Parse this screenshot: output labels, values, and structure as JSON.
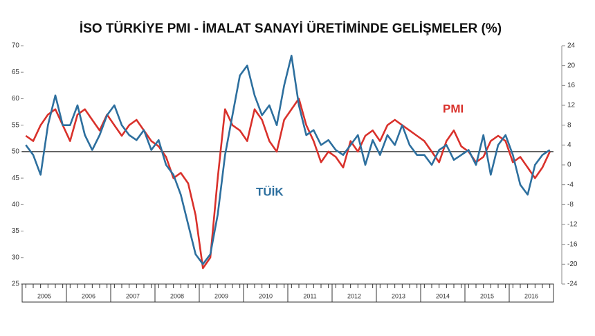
{
  "chart_data": {
    "type": "line",
    "title": "İSO TÜRKİYE PMI - İMALAT SANAYİ ÜRETİMİNDE GELİŞMELER (%)",
    "categories": [
      "2005",
      null,
      null,
      null,
      null,
      null,
      "2006",
      null,
      null,
      null,
      null,
      null,
      "2007",
      null,
      null,
      null,
      null,
      null,
      "2008",
      null,
      null,
      null,
      null,
      null,
      "2009",
      null,
      null,
      null,
      null,
      null,
      "2010",
      null,
      null,
      null,
      null,
      null,
      "2011",
      null,
      null,
      null,
      null,
      null,
      "2012",
      null,
      null,
      null,
      null,
      null,
      "2013",
      null,
      null,
      null,
      null,
      null,
      "2014",
      null,
      null,
      null,
      null,
      null,
      "2015",
      null,
      null,
      null,
      null,
      null,
      "2016",
      null,
      null,
      null,
      null,
      null
    ],
    "series": [
      {
        "name": "PMI",
        "color": "#d9312b",
        "values": [
          53,
          52,
          55,
          57,
          58,
          55,
          52,
          57,
          58,
          56,
          54,
          57,
          55,
          53,
          55,
          56,
          54,
          52,
          51,
          49,
          45,
          46,
          44,
          38,
          28,
          30,
          45,
          58,
          55,
          54,
          52,
          58,
          56,
          52,
          50,
          56,
          58,
          60,
          55,
          52,
          48,
          50,
          49,
          47,
          52,
          50,
          53,
          54,
          52,
          55,
          56,
          55,
          54,
          53,
          52,
          50,
          48,
          52,
          54,
          51,
          50,
          48,
          49,
          52,
          53,
          52,
          48,
          49,
          47,
          45,
          47,
          50
        ]
      },
      {
        "name": "TÜİK",
        "color": "#2d6f9e",
        "axis": "y2",
        "values": [
          4,
          2,
          -2,
          8,
          14,
          8,
          8,
          12,
          6,
          3,
          6,
          10,
          12,
          8,
          6,
          5,
          7,
          3,
          5,
          0,
          -2,
          -6,
          -12,
          -18,
          -20,
          -18,
          -10,
          2,
          10,
          18,
          20,
          14,
          10,
          12,
          8,
          16,
          22,
          12,
          6,
          7,
          4,
          5,
          3,
          2,
          4,
          6,
          0,
          5,
          2,
          6,
          4,
          8,
          4,
          2,
          2,
          0,
          3,
          4,
          1,
          2,
          3,
          0,
          6,
          -2,
          4,
          6,
          2,
          -4,
          -6,
          0,
          2,
          3
        ]
      }
    ],
    "ylim": [
      25,
      70
    ],
    "yticks": [
      25,
      30,
      35,
      40,
      45,
      50,
      55,
      60,
      65,
      70
    ],
    "y2lim": [
      -24,
      24
    ],
    "y2ticks": [
      -24,
      -20,
      -16,
      -12,
      -8,
      -4,
      0,
      4,
      8,
      12,
      16,
      20,
      24
    ],
    "reference_line": 50
  }
}
